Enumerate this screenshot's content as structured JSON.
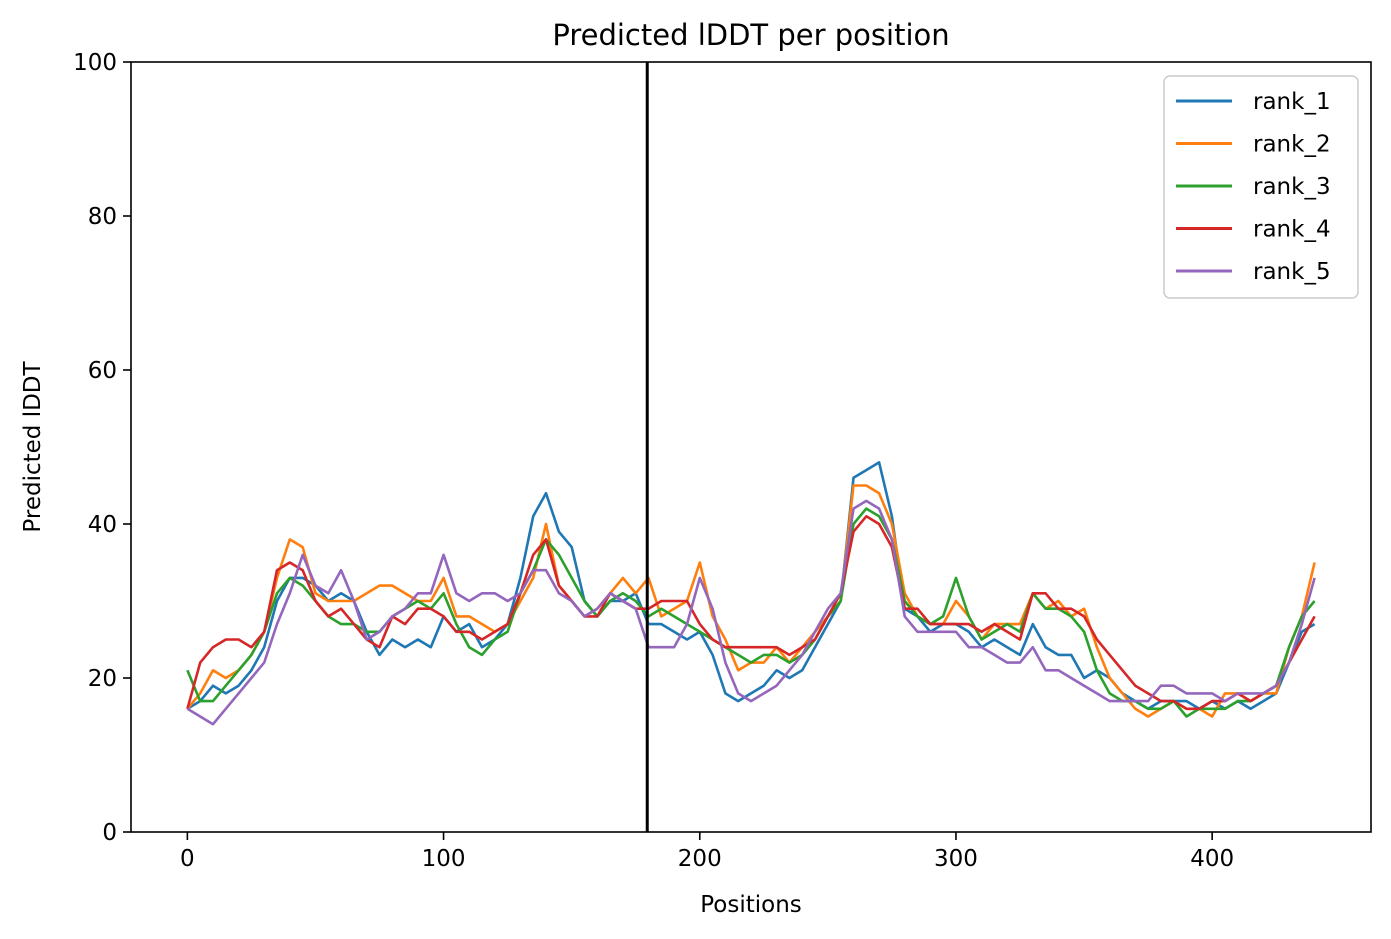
{
  "chart_data": {
    "type": "line",
    "title": "Predicted lDDT per position",
    "xlabel": "Positions",
    "ylabel": "Predicted lDDT",
    "xlim": [
      -22,
      462
    ],
    "ylim": [
      0,
      100
    ],
    "xticks": [
      0,
      100,
      200,
      300,
      400
    ],
    "yticks": [
      0,
      20,
      40,
      60,
      80,
      100
    ],
    "grid": false,
    "legend_position": "top-right",
    "vline_x": 179.5,
    "vline_color": "#000000",
    "x": [
      0,
      5,
      10,
      15,
      20,
      25,
      30,
      35,
      40,
      45,
      50,
      55,
      60,
      65,
      70,
      75,
      80,
      85,
      90,
      95,
      100,
      105,
      110,
      115,
      120,
      125,
      130,
      135,
      140,
      145,
      150,
      155,
      160,
      165,
      170,
      175,
      180,
      185,
      190,
      195,
      200,
      205,
      210,
      215,
      220,
      225,
      230,
      235,
      240,
      245,
      250,
      255,
      260,
      265,
      270,
      275,
      280,
      285,
      290,
      295,
      300,
      305,
      310,
      315,
      320,
      325,
      330,
      335,
      340,
      345,
      350,
      355,
      360,
      365,
      370,
      375,
      380,
      385,
      390,
      395,
      400,
      405,
      410,
      415,
      420,
      425,
      430,
      435,
      440
    ],
    "series": [
      {
        "name": "rank_1",
        "color": "#1f77b4",
        "values": [
          16,
          17,
          19,
          18,
          19,
          21,
          24,
          30,
          33,
          33,
          32,
          30,
          31,
          30,
          26,
          23,
          25,
          24,
          25,
          24,
          28,
          26,
          27,
          24,
          25,
          27,
          33,
          41,
          44,
          39,
          37,
          30,
          28,
          30,
          30,
          31,
          27,
          27,
          26,
          25,
          26,
          23,
          18,
          17,
          18,
          19,
          21,
          20,
          21,
          24,
          27,
          30,
          46,
          47,
          48,
          41,
          29,
          28,
          26,
          27,
          27,
          26,
          24,
          25,
          24,
          23,
          27,
          24,
          23,
          23,
          20,
          21,
          20,
          18,
          17,
          16,
          17,
          17,
          17,
          16,
          17,
          16,
          17,
          16,
          17,
          18,
          22,
          26,
          27
        ]
      },
      {
        "name": "rank_2",
        "color": "#ff7f0e",
        "values": [
          16,
          18,
          21,
          20,
          21,
          23,
          26,
          33,
          38,
          37,
          31,
          30,
          30,
          30,
          31,
          32,
          32,
          31,
          30,
          30,
          33,
          28,
          28,
          27,
          26,
          27,
          30,
          33,
          40,
          32,
          30,
          28,
          29,
          31,
          33,
          31,
          33,
          28,
          29,
          30,
          35,
          28,
          25,
          21,
          22,
          22,
          24,
          22,
          24,
          26,
          28,
          30,
          45,
          45,
          44,
          40,
          31,
          28,
          27,
          27,
          30,
          28,
          25,
          27,
          27,
          27,
          31,
          29,
          30,
          28,
          29,
          24,
          20,
          18,
          16,
          15,
          16,
          17,
          16,
          16,
          15,
          18,
          18,
          17,
          18,
          18,
          24,
          28,
          35
        ]
      },
      {
        "name": "rank_3",
        "color": "#2ca02c",
        "values": [
          21,
          17,
          17,
          19,
          21,
          23,
          26,
          31,
          33,
          32,
          30,
          28,
          27,
          27,
          26,
          26,
          28,
          29,
          30,
          29,
          31,
          27,
          24,
          23,
          25,
          26,
          31,
          34,
          38,
          36,
          33,
          30,
          28,
          30,
          31,
          30,
          28,
          29,
          28,
          27,
          26,
          25,
          24,
          23,
          22,
          23,
          23,
          22,
          23,
          25,
          28,
          30,
          40,
          42,
          41,
          38,
          30,
          28,
          27,
          28,
          33,
          28,
          25,
          26,
          27,
          26,
          31,
          29,
          29,
          28,
          26,
          21,
          18,
          17,
          17,
          16,
          16,
          17,
          15,
          16,
          16,
          16,
          17,
          17,
          18,
          19,
          24,
          28,
          30
        ]
      },
      {
        "name": "rank_4",
        "color": "#d62728",
        "values": [
          16,
          22,
          24,
          25,
          25,
          24,
          26,
          34,
          35,
          34,
          30,
          28,
          29,
          27,
          25,
          24,
          28,
          27,
          29,
          29,
          28,
          26,
          26,
          25,
          26,
          27,
          31,
          36,
          38,
          32,
          30,
          28,
          28,
          31,
          30,
          29,
          29,
          30,
          30,
          30,
          27,
          25,
          24,
          24,
          24,
          24,
          24,
          23,
          24,
          25,
          28,
          31,
          39,
          41,
          40,
          37,
          29,
          29,
          27,
          27,
          27,
          27,
          26,
          27,
          26,
          25,
          31,
          31,
          29,
          29,
          28,
          25,
          23,
          21,
          19,
          18,
          17,
          17,
          16,
          16,
          17,
          17,
          18,
          17,
          18,
          19,
          22,
          25,
          28
        ]
      },
      {
        "name": "rank_5",
        "color": "#9467bd",
        "values": [
          16,
          15,
          14,
          16,
          18,
          20,
          22,
          27,
          31,
          36,
          32,
          31,
          34,
          30,
          25,
          26,
          28,
          29,
          31,
          31,
          36,
          31,
          30,
          31,
          31,
          30,
          31,
          34,
          34,
          31,
          30,
          28,
          29,
          31,
          30,
          29,
          24,
          24,
          24,
          27,
          33,
          29,
          22,
          18,
          17,
          18,
          19,
          21,
          23,
          26,
          29,
          31,
          42,
          43,
          42,
          38,
          28,
          26,
          26,
          26,
          26,
          24,
          24,
          23,
          22,
          22,
          24,
          21,
          21,
          20,
          19,
          18,
          17,
          17,
          17,
          17,
          19,
          19,
          18,
          18,
          18,
          17,
          18,
          18,
          18,
          19,
          22,
          27,
          33
        ]
      }
    ]
  }
}
